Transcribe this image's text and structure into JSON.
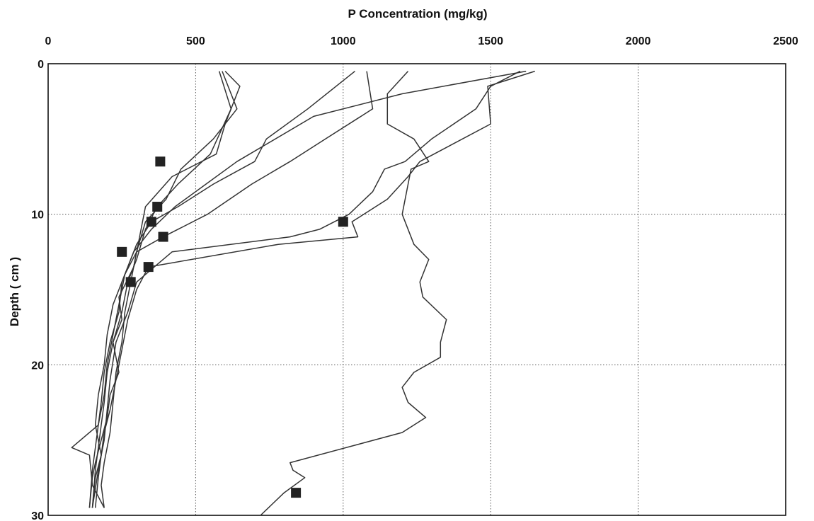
{
  "chart_data": {
    "type": "line",
    "xlabel": "P Concentration (mg/kg)",
    "ylabel": "Depth ( cm )",
    "xlim": [
      0,
      2500
    ],
    "ylim": [
      0,
      30
    ],
    "y_inverted": true,
    "x_axis_position": "top",
    "x_ticks": [
      "0",
      "500",
      "1000",
      "1500",
      "2000",
      "2500"
    ],
    "y_ticks": [
      "0",
      "10",
      "20",
      "30"
    ],
    "grid": true,
    "series": [
      {
        "points": [
          [
            600,
            0.5
          ],
          [
            650,
            1.5
          ],
          [
            600,
            4
          ],
          [
            570,
            6
          ],
          [
            420,
            7.5
          ],
          [
            330,
            9.5
          ],
          [
            310,
            11.5
          ],
          [
            290,
            13.5
          ],
          [
            240,
            15.5
          ],
          [
            250,
            17
          ],
          [
            220,
            18.5
          ],
          [
            240,
            20.5
          ],
          [
            210,
            22
          ],
          [
            200,
            23.5
          ],
          [
            180,
            25
          ],
          [
            160,
            26.5
          ],
          [
            150,
            27.5
          ],
          [
            140,
            29.5
          ]
        ],
        "marker": [
          380,
          6.5
        ]
      },
      {
        "points": [
          [
            580,
            0.5
          ],
          [
            620,
            3
          ],
          [
            550,
            6
          ],
          [
            440,
            8
          ],
          [
            370,
            9.5
          ],
          [
            330,
            11
          ],
          [
            300,
            13
          ],
          [
            270,
            14.5
          ],
          [
            250,
            16.5
          ],
          [
            220,
            18.5
          ],
          [
            200,
            20.5
          ],
          [
            190,
            22.5
          ],
          [
            180,
            24
          ],
          [
            170,
            25.5
          ],
          [
            160,
            27
          ],
          [
            150,
            29.5
          ]
        ],
        "marker": [
          370,
          9.5
        ]
      },
      {
        "points": [
          [
            1040,
            0.5
          ],
          [
            880,
            3
          ],
          [
            740,
            5
          ],
          [
            700,
            6.5
          ],
          [
            560,
            8
          ],
          [
            440,
            9.5
          ],
          [
            350,
            10.5
          ],
          [
            300,
            12
          ],
          [
            260,
            14
          ],
          [
            220,
            16
          ],
          [
            200,
            18
          ],
          [
            190,
            20
          ],
          [
            170,
            22
          ],
          [
            160,
            24
          ],
          [
            180,
            26
          ],
          [
            170,
            27.5
          ],
          [
            160,
            29.5
          ]
        ],
        "marker": [
          350,
          10.5
        ]
      },
      {
        "points": [
          [
            1080,
            0.5
          ],
          [
            1100,
            3
          ],
          [
            940,
            5
          ],
          [
            820,
            6.5
          ],
          [
            690,
            8
          ],
          [
            540,
            10
          ],
          [
            390,
            11.5
          ],
          [
            300,
            12.5
          ],
          [
            260,
            14
          ],
          [
            240,
            16
          ],
          [
            220,
            18
          ],
          [
            200,
            20
          ],
          [
            190,
            22
          ],
          [
            170,
            24
          ],
          [
            80,
            25.5
          ],
          [
            140,
            26
          ],
          [
            150,
            28
          ],
          [
            190,
            29.5
          ]
        ],
        "marker": [
          390,
          11.5
        ]
      },
      {
        "points": [
          [
            1620,
            0.5
          ],
          [
            1200,
            2
          ],
          [
            900,
            3.5
          ],
          [
            640,
            6.5
          ],
          [
            430,
            9.5
          ],
          [
            350,
            11
          ],
          [
            290,
            12.5
          ],
          [
            250,
            14.5
          ],
          [
            240,
            16.5
          ],
          [
            210,
            18.5
          ],
          [
            190,
            20.5
          ],
          [
            180,
            22.5
          ],
          [
            170,
            24
          ],
          [
            160,
            25.5
          ],
          [
            150,
            27
          ],
          [
            140,
            29.5
          ]
        ],
        "marker": [
          250,
          12.5
        ]
      },
      {
        "points": [
          [
            1650,
            0.5
          ],
          [
            1490,
            1.5
          ],
          [
            1500,
            4
          ],
          [
            1260,
            6.5
          ],
          [
            1220,
            7.5
          ],
          [
            1150,
            9
          ],
          [
            1030,
            10.5
          ],
          [
            1050,
            11.5
          ],
          [
            780,
            12
          ],
          [
            340,
            13.5
          ],
          [
            300,
            15
          ],
          [
            270,
            17
          ],
          [
            250,
            19
          ],
          [
            230,
            21
          ],
          [
            210,
            23
          ],
          [
            190,
            24.5
          ],
          [
            180,
            26
          ],
          [
            160,
            27.5
          ],
          [
            150,
            29.5
          ]
        ],
        "marker": [
          1000,
          10.5
        ]
      },
      {
        "points": [
          [
            1220,
            0.5
          ],
          [
            1150,
            2
          ],
          [
            1150,
            4
          ],
          [
            1240,
            5
          ],
          [
            1290,
            6.5
          ],
          [
            1230,
            7
          ],
          [
            1200,
            10
          ],
          [
            1240,
            12
          ],
          [
            1290,
            13
          ],
          [
            1260,
            14.5
          ],
          [
            1270,
            15.5
          ],
          [
            1350,
            17
          ],
          [
            1330,
            18.5
          ],
          [
            1330,
            19.5
          ],
          [
            1240,
            20.5
          ],
          [
            1200,
            21.5
          ],
          [
            1220,
            22.5
          ],
          [
            1280,
            23.5
          ],
          [
            1200,
            24.5
          ],
          [
            820,
            26.5
          ],
          [
            830,
            27
          ],
          [
            870,
            27.5
          ],
          [
            800,
            28.5
          ],
          [
            720,
            30
          ]
        ],
        "marker": [
          840,
          28.5
        ]
      },
      {
        "points": [
          [
            1600,
            0.5
          ],
          [
            1500,
            1.5
          ],
          [
            1450,
            3
          ],
          [
            1300,
            5
          ],
          [
            1210,
            6.5
          ],
          [
            1140,
            7
          ],
          [
            1100,
            8.5
          ],
          [
            1020,
            10
          ],
          [
            920,
            11
          ],
          [
            820,
            11.5
          ],
          [
            420,
            12.5
          ],
          [
            360,
            13.5
          ],
          [
            300,
            14.5
          ],
          [
            270,
            16.5
          ],
          [
            230,
            18.5
          ],
          [
            210,
            21
          ],
          [
            200,
            23
          ],
          [
            190,
            25
          ],
          [
            170,
            27
          ],
          [
            150,
            29.5
          ]
        ],
        "marker": [
          340,
          13.5
        ]
      },
      {
        "points": [
          [
            590,
            0.5
          ],
          [
            640,
            3
          ],
          [
            560,
            5
          ],
          [
            450,
            7
          ],
          [
            400,
            9
          ],
          [
            330,
            10.5
          ],
          [
            300,
            12.5
          ],
          [
            280,
            14.5
          ],
          [
            260,
            16.5
          ],
          [
            250,
            18.5
          ],
          [
            230,
            20.5
          ],
          [
            220,
            22.5
          ],
          [
            210,
            24.5
          ],
          [
            190,
            26.5
          ],
          [
            180,
            28
          ],
          [
            190,
            29.5
          ]
        ],
        "marker": [
          280,
          14.5
        ]
      }
    ]
  }
}
